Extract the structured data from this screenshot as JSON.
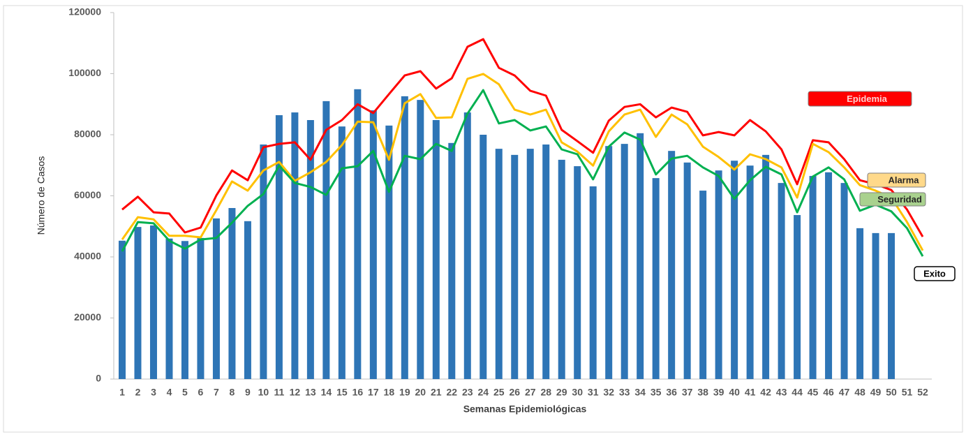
{
  "chart_data": {
    "type": "bar",
    "x_label": "Semanas Epidemiológicas",
    "y_label": "Número de Casos",
    "categories": [
      1,
      2,
      3,
      4,
      5,
      6,
      7,
      8,
      9,
      10,
      11,
      12,
      13,
      14,
      15,
      16,
      17,
      18,
      19,
      20,
      21,
      22,
      23,
      24,
      25,
      26,
      27,
      28,
      29,
      30,
      31,
      32,
      33,
      34,
      35,
      36,
      37,
      38,
      39,
      40,
      41,
      42,
      43,
      44,
      45,
      46,
      47,
      48,
      49,
      50,
      51,
      52
    ],
    "ylim": [
      0,
      120000
    ],
    "yticks": [
      0,
      20000,
      40000,
      60000,
      80000,
      100000,
      120000
    ],
    "annotation": "Exito",
    "series": [
      {
        "type": "bar",
        "color": "#2e75b6",
        "values": [
          45300,
          49800,
          50300,
          46000,
          45200,
          46200,
          52600,
          56000,
          51700,
          76800,
          86400,
          87300,
          84800,
          91000,
          82700,
          94900,
          88000,
          83000,
          92600,
          91400,
          84800,
          77300,
          87300,
          80000,
          75400,
          73400,
          75400,
          76800,
          71800,
          69700,
          63100,
          76300,
          77000,
          80500,
          65800,
          74700,
          70900,
          61700,
          68300,
          71500,
          69900,
          73400,
          64200,
          53700,
          66500,
          67700,
          64200,
          49400,
          47800,
          47800,
          null,
          null
        ]
      },
      {
        "type": "line",
        "name": "Epidemia",
        "color": "#ff0000",
        "values": [
          55500,
          59700,
          54600,
          54200,
          48000,
          49600,
          60100,
          68300,
          65100,
          75900,
          77000,
          77500,
          71800,
          81600,
          84800,
          90000,
          87100,
          93300,
          99400,
          100800,
          95100,
          98500,
          108800,
          111300,
          101900,
          99400,
          94400,
          92800,
          81600,
          77900,
          74100,
          84600,
          89100,
          90000,
          85700,
          88900,
          87500,
          79800,
          80900,
          79800,
          84800,
          81100,
          75200,
          63800,
          78200,
          77500,
          72000,
          65100,
          63800,
          61900,
          55500,
          46600
        ]
      },
      {
        "type": "line",
        "name": "Alarma",
        "color": "#ffc000",
        "values": [
          45700,
          53000,
          52300,
          46900,
          46900,
          46400,
          55300,
          64700,
          61700,
          68300,
          71100,
          64900,
          67700,
          71100,
          76600,
          84300,
          84100,
          71800,
          90300,
          93300,
          85500,
          85700,
          98300,
          99900,
          96500,
          88200,
          86600,
          88200,
          77500,
          74500,
          69900,
          81100,
          86600,
          88200,
          79300,
          86600,
          83400,
          76100,
          72700,
          68600,
          73600,
          72000,
          69300,
          59400,
          77000,
          74300,
          69300,
          63500,
          61700,
          59400,
          51400,
          42100
        ]
      },
      {
        "type": "line",
        "name": "Seguridad",
        "color": "#00b050",
        "values": [
          41800,
          51400,
          51000,
          45300,
          42700,
          45700,
          46200,
          51200,
          56700,
          60600,
          69900,
          64200,
          62900,
          60300,
          69000,
          69700,
          74700,
          61300,
          73100,
          72000,
          77000,
          74700,
          86900,
          94600,
          83700,
          84800,
          81400,
          82700,
          75200,
          73600,
          65400,
          76100,
          80700,
          78400,
          67000,
          72200,
          73100,
          69300,
          66500,
          59000,
          65100,
          69500,
          67000,
          54600,
          66300,
          69300,
          65400,
          55100,
          57100,
          54900,
          49400,
          40200
        ]
      }
    ]
  }
}
